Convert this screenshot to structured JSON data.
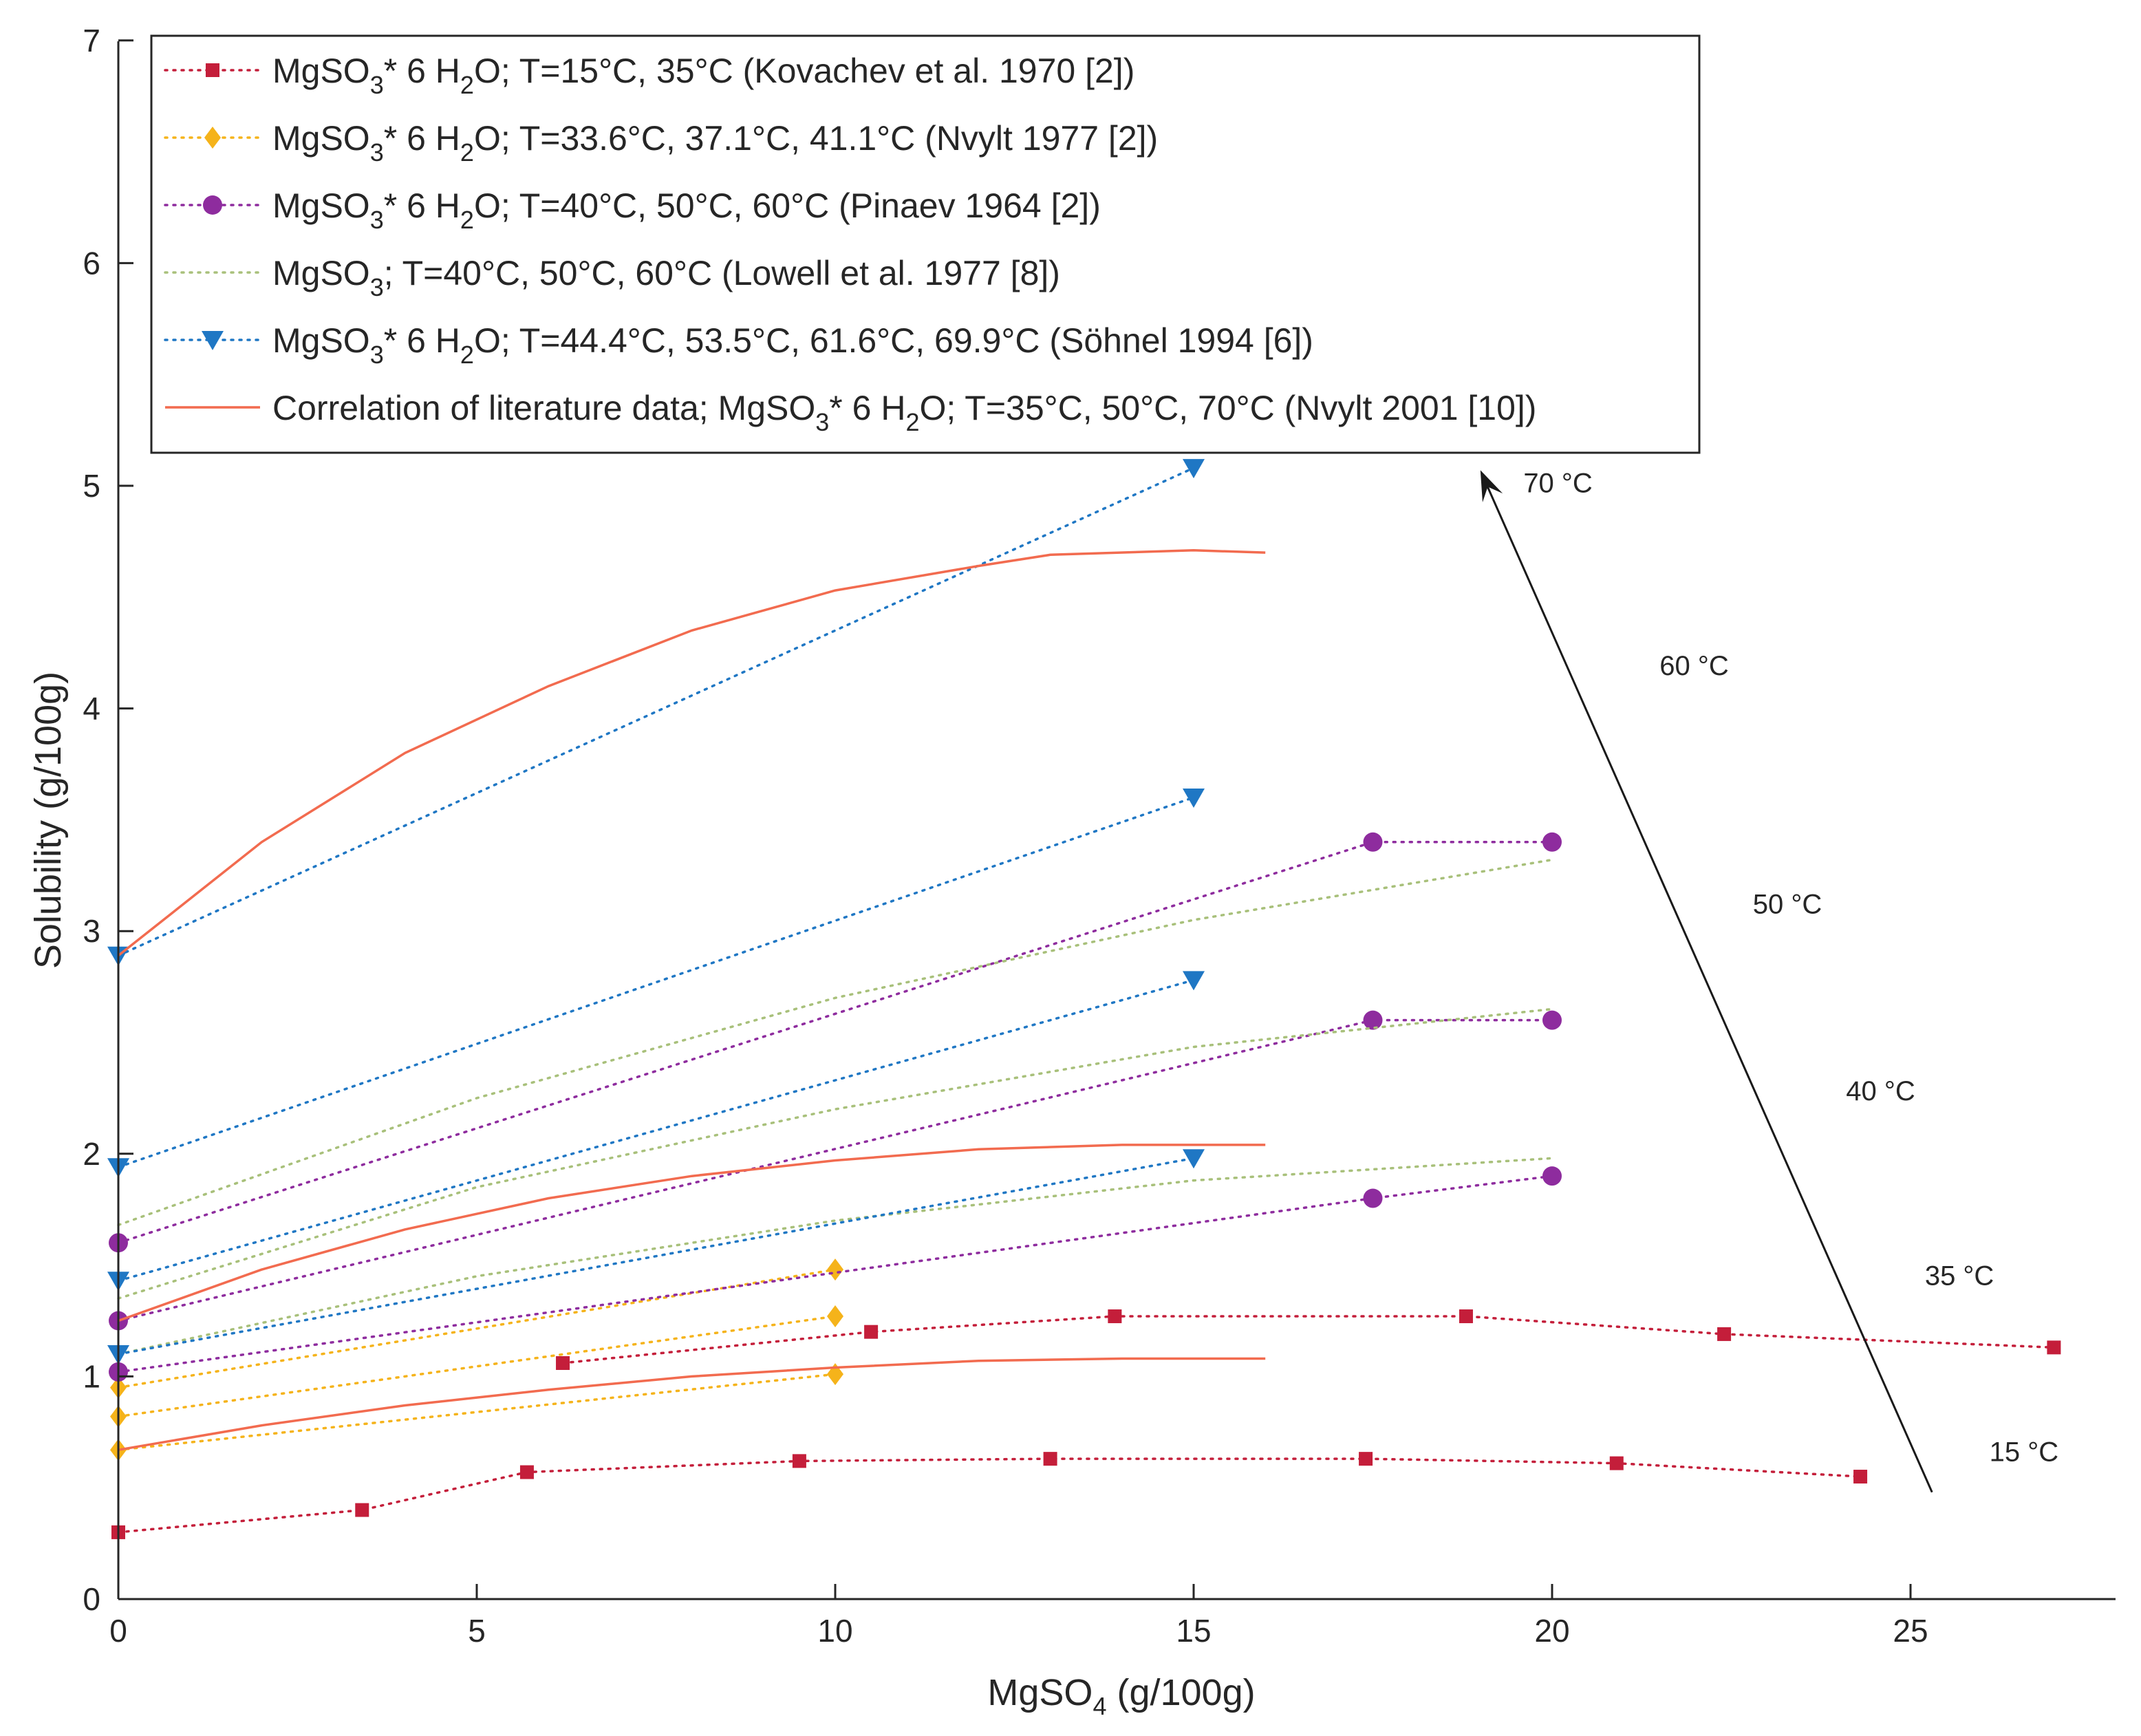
{
  "chart_data": {
    "type": "line",
    "title": "",
    "xlabel": "MgSO",
    "xlabel_sub": "4",
    "xlabel_tail": " (g/100g)",
    "ylabel": "Solubility (g/100g)",
    "xlim": [
      0,
      28
    ],
    "ylim": [
      0,
      7
    ],
    "x_ticks": [
      0,
      5,
      10,
      15,
      20,
      25
    ],
    "x_tick_labels": [
      "0",
      "5",
      "10",
      "15",
      "20",
      "25"
    ],
    "y_ticks": [
      0,
      1,
      2,
      3,
      4,
      5,
      6,
      7
    ],
    "y_tick_labels": [
      "0",
      "1",
      "2",
      "3",
      "4",
      "5",
      "6",
      "7"
    ],
    "grid": false,
    "legend_position": "top",
    "series": [
      {
        "id": "kovachev",
        "marker": "square",
        "color": "#c41e3a",
        "linestyle": "dotted",
        "legend": [
          "MgSO",
          "3",
          "* 6 H",
          "2",
          "O; T=15°C, 35°C (Kovachev et al. 1970 [2])"
        ],
        "curves": [
          {
            "x": [
              0,
              3.4,
              5.7,
              9.5,
              13,
              17.4,
              20.9,
              24.3
            ],
            "y": [
              0.3,
              0.4,
              0.57,
              0.62,
              0.63,
              0.63,
              0.61,
              0.55
            ]
          },
          {
            "x": [
              6.2,
              10.5,
              13.9,
              18.8,
              22.4,
              27
            ],
            "y": [
              1.06,
              1.2,
              1.27,
              1.27,
              1.19,
              1.13
            ]
          }
        ]
      },
      {
        "id": "nvylt1977",
        "marker": "diamond",
        "color": "#f5b31a",
        "linestyle": "dotted",
        "legend": [
          "MgSO",
          "3",
          "* 6 H",
          "2",
          "O; T=33.6°C, 37.1°C, 41.1°C (Nvylt 1977 [2])"
        ],
        "curves": [
          {
            "x": [
              0,
              10
            ],
            "y": [
              0.67,
              1.01
            ]
          },
          {
            "x": [
              0,
              10
            ],
            "y": [
              0.82,
              1.27
            ]
          },
          {
            "x": [
              0,
              10
            ],
            "y": [
              0.95,
              1.48
            ]
          }
        ]
      },
      {
        "id": "pinaev",
        "marker": "circle",
        "color": "#8e2c9e",
        "linestyle": "dotted",
        "legend": [
          "MgSO",
          "3",
          "* 6 H",
          "2",
          "O; T=40°C, 50°C, 60°C (Pinaev 1964 [2])"
        ],
        "curves": [
          {
            "x": [
              0,
              17.5,
              20
            ],
            "y": [
              1.02,
              1.8,
              1.9
            ]
          },
          {
            "x": [
              0,
              17.5,
              20
            ],
            "y": [
              1.25,
              2.6,
              2.6
            ]
          },
          {
            "x": [
              0,
              17.5,
              20
            ],
            "y": [
              1.6,
              3.4,
              3.4
            ]
          }
        ]
      },
      {
        "id": "lowell",
        "marker": "none",
        "color": "#a8c07a",
        "linestyle": "dotted",
        "legend": [
          "MgSO",
          "3",
          "; T=40°C, 50°C, 60°C (Lowell et al. 1977 [8])",
          "",
          ""
        ],
        "curves": [
          {
            "x": [
              0,
              5,
              10,
              15,
              20
            ],
            "y": [
              1.1,
              1.45,
              1.7,
              1.88,
              1.98
            ]
          },
          {
            "x": [
              0,
              5,
              10,
              15,
              20
            ],
            "y": [
              1.35,
              1.85,
              2.2,
              2.48,
              2.65
            ]
          },
          {
            "x": [
              0,
              5,
              10,
              15,
              20
            ],
            "y": [
              1.68,
              2.25,
              2.7,
              3.05,
              3.32
            ]
          }
        ]
      },
      {
        "id": "sohnel",
        "marker": "triangle-down",
        "color": "#1f77c4",
        "linestyle": "dotted",
        "legend": [
          "MgSO",
          "3",
          "* 6 H",
          "2",
          "O; T=44.4°C, 53.5°C, 61.6°C, 69.9°C (Söhnel 1994 [6])"
        ],
        "curves": [
          {
            "x": [
              0,
              15
            ],
            "y": [
              1.1,
              1.98
            ]
          },
          {
            "x": [
              0,
              15
            ],
            "y": [
              1.43,
              2.78
            ]
          },
          {
            "x": [
              0,
              15
            ],
            "y": [
              1.94,
              3.6
            ]
          },
          {
            "x": [
              0,
              15
            ],
            "y": [
              2.89,
              5.08
            ]
          }
        ]
      },
      {
        "id": "correlation",
        "marker": "none",
        "color": "#f26b4f",
        "linestyle": "solid",
        "legend": [
          "Correlation of literature data; MgSO",
          "3",
          "* 6 H",
          "2",
          "O; T=35°C, 50°C, 70°C (Nvylt 2001 [10])"
        ],
        "curves": [
          {
            "x": [
              0,
              2,
              4,
              6,
              8,
              10,
              12,
              14,
              15,
              16
            ],
            "y": [
              0.67,
              0.78,
              0.87,
              0.94,
              1.0,
              1.04,
              1.07,
              1.08,
              1.08,
              1.08
            ]
          },
          {
            "x": [
              0,
              2,
              4,
              6,
              8,
              10,
              12,
              14,
              15,
              16
            ],
            "y": [
              1.25,
              1.48,
              1.66,
              1.8,
              1.9,
              1.97,
              2.02,
              2.04,
              2.04,
              2.04
            ]
          },
          {
            "x": [
              0,
              2,
              4,
              6,
              8,
              10,
              12,
              13,
              15,
              16
            ],
            "y": [
              2.89,
              3.4,
              3.8,
              4.1,
              4.35,
              4.53,
              4.64,
              4.69,
              4.71,
              4.7
            ]
          }
        ]
      }
    ],
    "annotations": {
      "arrow": {
        "from": [
          25.3,
          0.48
        ],
        "to": [
          19.0,
          5.07
        ]
      },
      "temperature_labels": [
        {
          "text": "70 °C",
          "x": 19.6,
          "y": 4.97
        },
        {
          "text": "60 °C",
          "x": 21.5,
          "y": 4.15
        },
        {
          "text": "50 °C",
          "x": 22.8,
          "y": 3.08
        },
        {
          "text": "40 °C",
          "x": 24.1,
          "y": 2.24
        },
        {
          "text": "35 °C",
          "x": 25.2,
          "y": 1.41
        },
        {
          "text": "15 °C",
          "x": 26.1,
          "y": 0.62
        }
      ]
    }
  }
}
